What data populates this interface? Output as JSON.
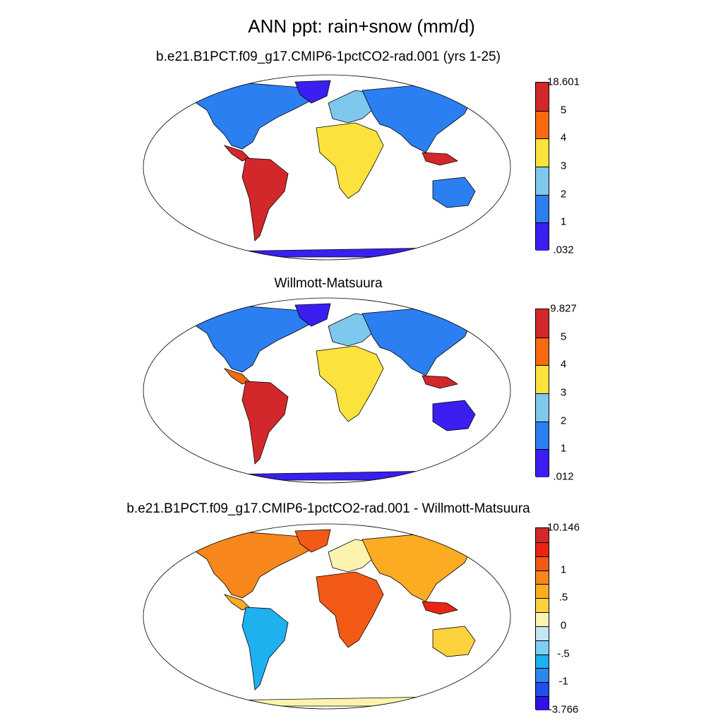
{
  "title": "ANN ppt: rain+snow (mm/d)",
  "panels": [
    {
      "title": "b.e21.B1PCT.f09_g17.CMIP6-1pctCO2-rad.001 (yrs 1-25)",
      "colors": [
        "#3a1ff0",
        "#2b7ff0",
        "#7ec8ee",
        "#fbe23c",
        "#f96a10",
        "#d3282b"
      ],
      "labels": [
        ".032",
        "1",
        "2",
        "3",
        "4",
        "5",
        "18.601"
      ]
    },
    {
      "title": "Willmott-Matsuura",
      "colors": [
        "#3a1ff0",
        "#2b7ff0",
        "#7ec8ee",
        "#fbe23c",
        "#f96a10",
        "#d3282b"
      ],
      "labels": [
        ".012",
        "1",
        "2",
        "3",
        "4",
        "5",
        "9.827"
      ]
    },
    {
      "title": "b.e21.B1PCT.f09_g17.CMIP6-1pctCO2-rad.001 - Willmott-Matsuura",
      "colors": [
        "#2f12e6",
        "#1f4fe6",
        "#2d86f0",
        "#1fb0f0",
        "#7dd0f3",
        "#c6e6f4",
        "#fcf4ae",
        "#fcd23c",
        "#fbac22",
        "#f7861d",
        "#f35a16",
        "#e92414",
        "#d3282b"
      ],
      "labels": [
        "-3.766",
        "",
        "-1",
        "",
        "-.5",
        "",
        "0",
        "",
        ".5",
        "",
        "1",
        "",
        "",
        "10.146"
      ]
    }
  ]
}
